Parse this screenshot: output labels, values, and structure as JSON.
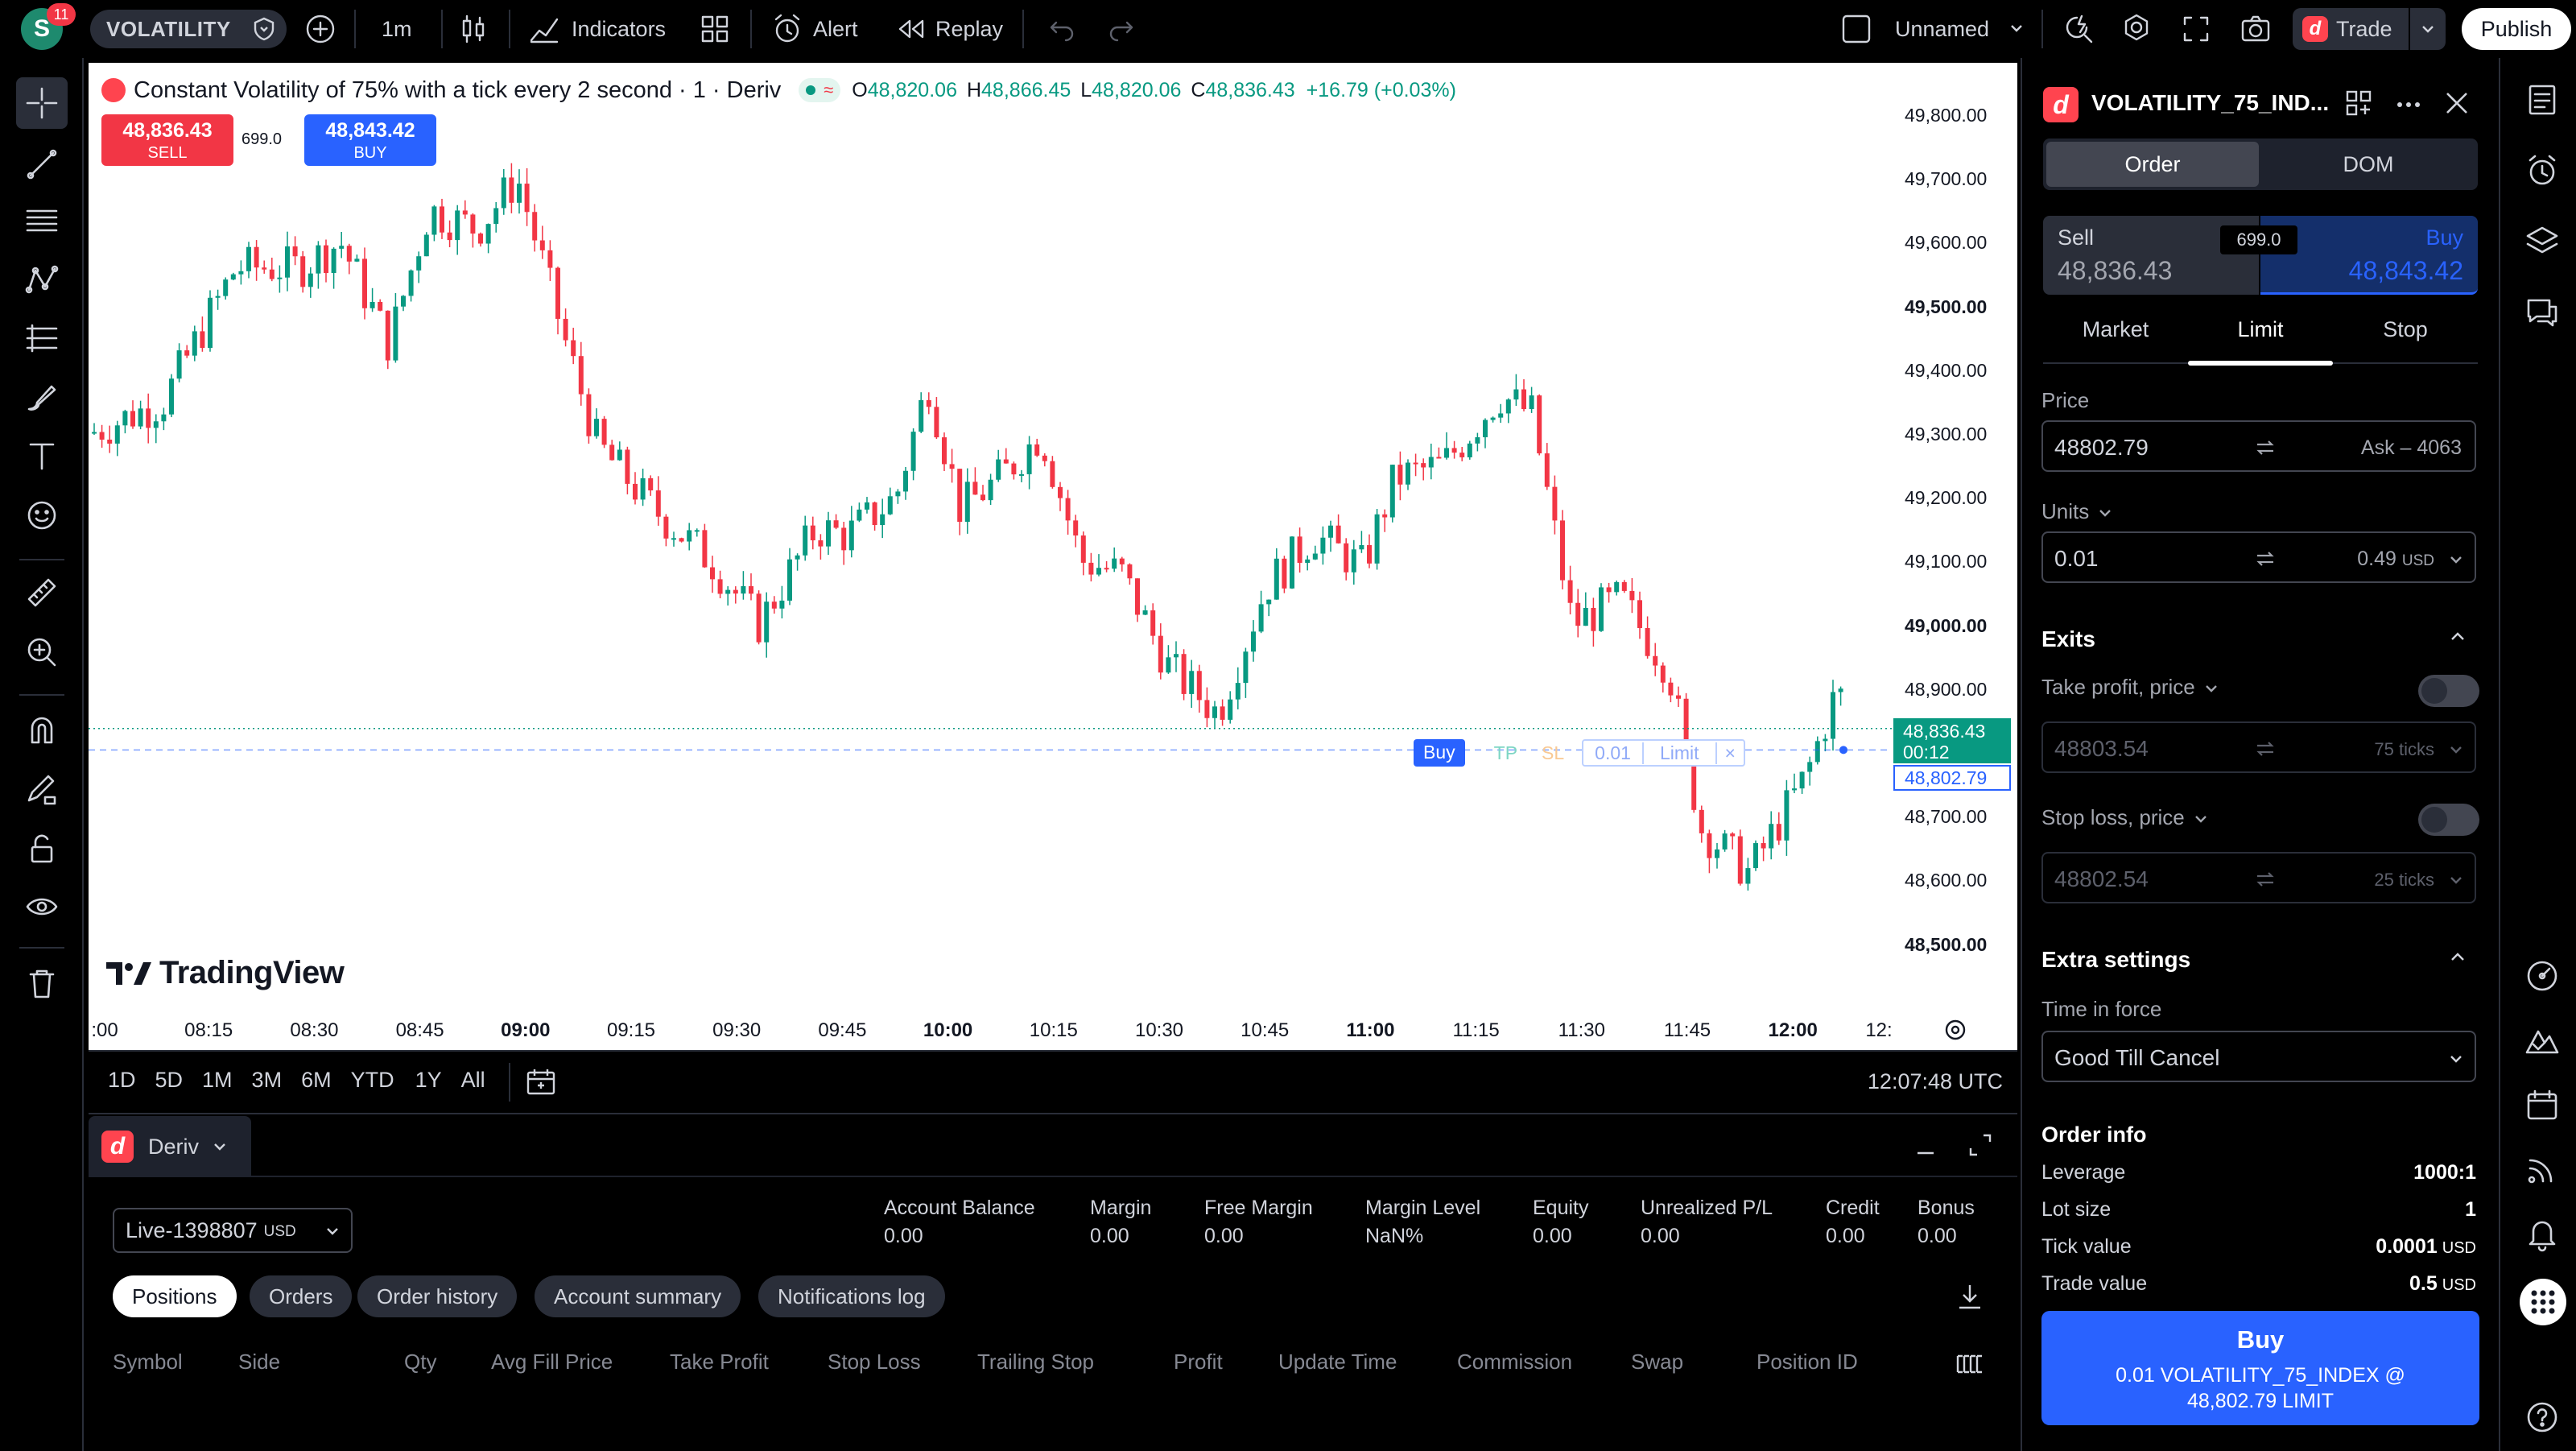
{
  "topbar": {
    "avatar_letter": "S",
    "notif_count": "11",
    "symbol": "VOLATILITY",
    "interval": "1m",
    "indicators": "Indicators",
    "alert": "Alert",
    "replay": "Replay",
    "layout_name": "Unnamed",
    "trade": "Trade",
    "publish": "Publish"
  },
  "chart": {
    "title": "Constant Volatility of 75% with a tick every 2 second · 1 · Deriv",
    "ohlc": {
      "o_label": "O",
      "o": "48,820.06",
      "h_label": "H",
      "h": "48,866.45",
      "l_label": "L",
      "l": "48,820.06",
      "c_label": "C",
      "c": "48,836.43",
      "chg": "+16.79 (+0.03%)"
    },
    "sell_price": "48,836.43",
    "sell_label": "SELL",
    "spread": "699.0",
    "buy_price": "48,843.42",
    "buy_label": "BUY",
    "price_axis": [
      "49,800.00",
      "49,700.00",
      "49,600.00",
      "49,500.00",
      "49,400.00",
      "49,300.00",
      "49,200.00",
      "49,100.00",
      "49,000.00",
      "48,900.00",
      "48,800.00",
      "48,700.00",
      "48,600.00",
      "48,500.00"
    ],
    "time_axis": [
      ":00",
      "08:15",
      "08:30",
      "08:45",
      "09:00",
      "09:15",
      "09:30",
      "09:45",
      "10:00",
      "10:15",
      "10:30",
      "10:45",
      "11:00",
      "11:15",
      "11:30",
      "11:45",
      "12:00",
      "12:"
    ],
    "last_price": "48,836.43",
    "countdown": "00:12",
    "limit_price": "48,802.79",
    "order_line": {
      "side": "Buy",
      "tp": "TP",
      "sl": "SL",
      "qty": "0.01",
      "type": "Limit",
      "close": "×"
    },
    "watermark": "TradingView",
    "ranges": [
      "1D",
      "5D",
      "1M",
      "3M",
      "6M",
      "YTD",
      "1Y",
      "All"
    ],
    "clock": "12:07:48 UTC",
    "colors": {
      "up": "#089981",
      "down": "#f23645",
      "accent": "#2962ff"
    }
  },
  "bottom": {
    "broker": "Deriv",
    "account": "Live-1398807",
    "account_ccy": "USD",
    "summary": [
      {
        "label": "Account Balance",
        "value": "0.00"
      },
      {
        "label": "Margin",
        "value": "0.00"
      },
      {
        "label": "Free Margin",
        "value": "0.00"
      },
      {
        "label": "Margin Level",
        "value": "NaN%"
      },
      {
        "label": "Equity",
        "value": "0.00"
      },
      {
        "label": "Unrealized P/L",
        "value": "0.00"
      },
      {
        "label": "Credit",
        "value": "0.00"
      },
      {
        "label": "Bonus",
        "value": "0.00"
      }
    ],
    "tabs": [
      "Positions",
      "Orders",
      "Order history",
      "Account summary",
      "Notifications log"
    ],
    "columns": [
      "Symbol",
      "Side",
      "Qty",
      "Avg Fill Price",
      "Take Profit",
      "Stop Loss",
      "Trailing Stop",
      "Profit",
      "Update Time",
      "Commission",
      "Swap",
      "Position ID"
    ]
  },
  "panel": {
    "symbol": "VOLATILITY_75_IND...",
    "tabs": [
      "Order",
      "DOM"
    ],
    "sell_label": "Sell",
    "sell_price": "48,836.43",
    "spread": "699.0",
    "buy_label": "Buy",
    "buy_price": "48,843.42",
    "order_types": [
      "Market",
      "Limit",
      "Stop"
    ],
    "price_label": "Price",
    "price_value": "48802.79",
    "price_hint": "Ask – 4063",
    "units_label": "Units",
    "units_value": "0.01",
    "units_hint": "0.49",
    "units_ccy": "USD",
    "exits": "Exits",
    "tp_label": "Take profit, price",
    "tp_value": "48803.54",
    "tp_hint": "75 ticks",
    "sl_label": "Stop loss, price",
    "sl_value": "48802.54",
    "sl_hint": "25 ticks",
    "extra": "Extra settings",
    "tif_label": "Time in force",
    "tif_value": "Good Till Cancel",
    "order_info": "Order info",
    "info": [
      {
        "label": "Leverage",
        "value": "1000:1",
        "unit": ""
      },
      {
        "label": "Lot size",
        "value": "1",
        "unit": ""
      },
      {
        "label": "Tick value",
        "value": "0.0001",
        "unit": "USD"
      },
      {
        "label": "Trade value",
        "value": "0.5",
        "unit": "USD"
      }
    ],
    "submit_title": "Buy",
    "submit_detail": "0.01 VOLATILITY_75_INDEX @ 48,802.79 LIMIT"
  }
}
